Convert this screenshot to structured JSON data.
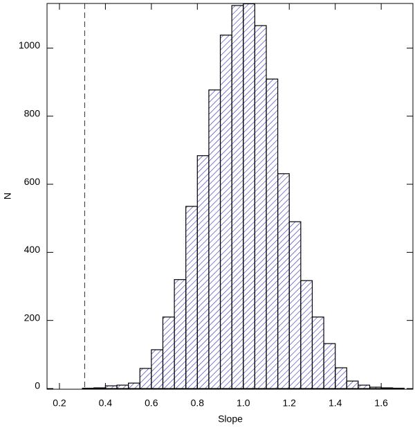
{
  "chart_data": {
    "type": "histogram",
    "x_label": "Slope",
    "y_label": "N",
    "bins": [
      0.25,
      0.3,
      0.35,
      0.4,
      0.45,
      0.5,
      0.55,
      0.6,
      0.65,
      0.7,
      0.75,
      0.8,
      0.85,
      0.9,
      0.95,
      1.0,
      1.05,
      1.1,
      1.15,
      1.2,
      1.25,
      1.3,
      1.35,
      1.4,
      1.45,
      1.5,
      1.55,
      1.6,
      1.65,
      1.7
    ],
    "values": [
      0,
      1,
      2,
      8,
      10,
      16,
      59,
      114,
      210,
      320,
      535,
      684,
      877,
      1038,
      1125,
      1130,
      1066,
      909,
      631,
      490,
      317,
      210,
      132,
      61,
      22,
      10,
      4,
      2,
      1
    ],
    "color": "#2a2ab8",
    "edge_color": "#000000",
    "vline": 0.31,
    "xlim": [
      0.146,
      1.738
    ],
    "xticks": [
      0.2,
      0.4,
      0.6,
      0.8,
      {
        "value": 1,
        "label": "1.0"
      },
      1.2,
      1.4,
      1.6
    ],
    "ylim": [
      -2,
      1131
    ],
    "yticks": [
      0,
      200,
      400,
      600,
      800,
      1000
    ]
  }
}
